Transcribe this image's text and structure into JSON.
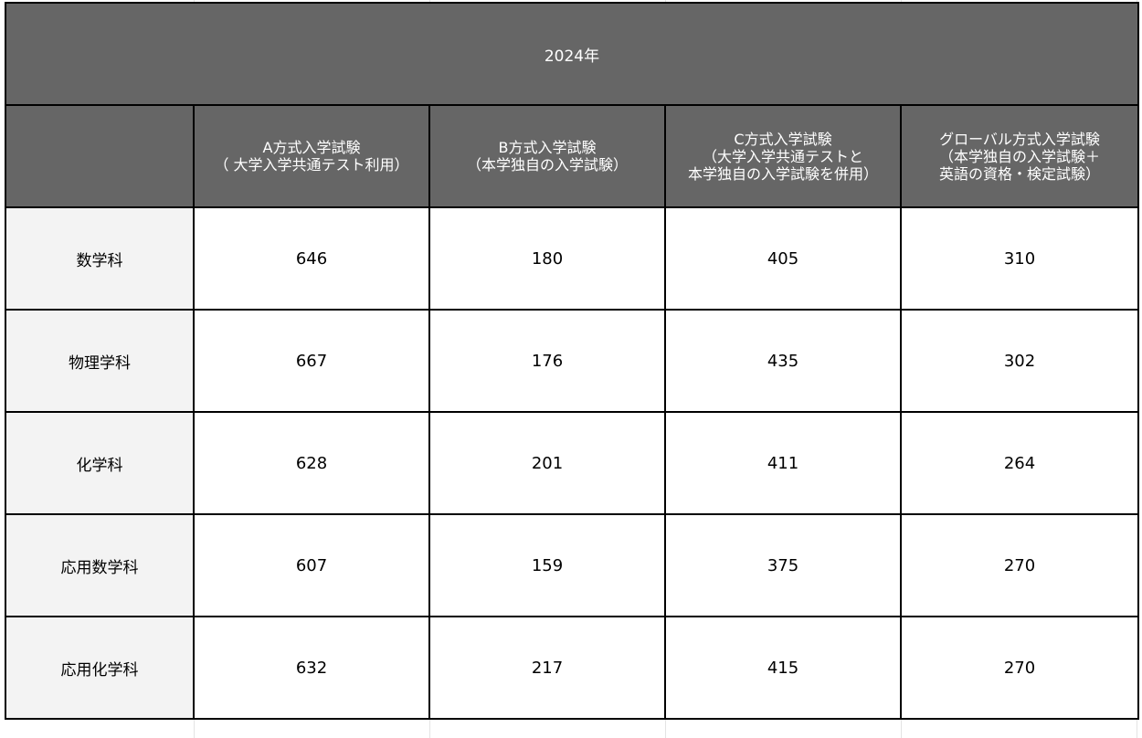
{
  "table": {
    "title": "2024年",
    "corner": "",
    "columns": [
      {
        "lines": [
          "A方式入学試験",
          "（ 大学入学共通テスト利用）"
        ]
      },
      {
        "lines": [
          "B方式入学試験",
          "（本学独自の入学試験）"
        ]
      },
      {
        "lines": [
          "C方式入学試験",
          "（大学入学共通テストと",
          "本学独自の入学試験を併用）"
        ]
      },
      {
        "lines": [
          "グローバル方式入学試験",
          "（本学独自の入学試験＋",
          "英語の資格・検定試験）"
        ]
      }
    ],
    "rows": [
      {
        "label": "数学科",
        "values": [
          "646",
          "180",
          "405",
          "310"
        ]
      },
      {
        "label": "物理学科",
        "values": [
          "667",
          "176",
          "435",
          "302"
        ]
      },
      {
        "label": "化学科",
        "values": [
          "628",
          "201",
          "411",
          "264"
        ]
      },
      {
        "label": "応用数学科",
        "values": [
          "607",
          "159",
          "375",
          "270"
        ]
      },
      {
        "label": "応用化学科",
        "values": [
          "632",
          "217",
          "415",
          "270"
        ]
      }
    ]
  },
  "colors": {
    "header_bg": "#666666",
    "header_text": "#ffffff",
    "row_label_bg": "#f3f3f3",
    "cell_bg": "#ffffff",
    "border": "#000000"
  }
}
